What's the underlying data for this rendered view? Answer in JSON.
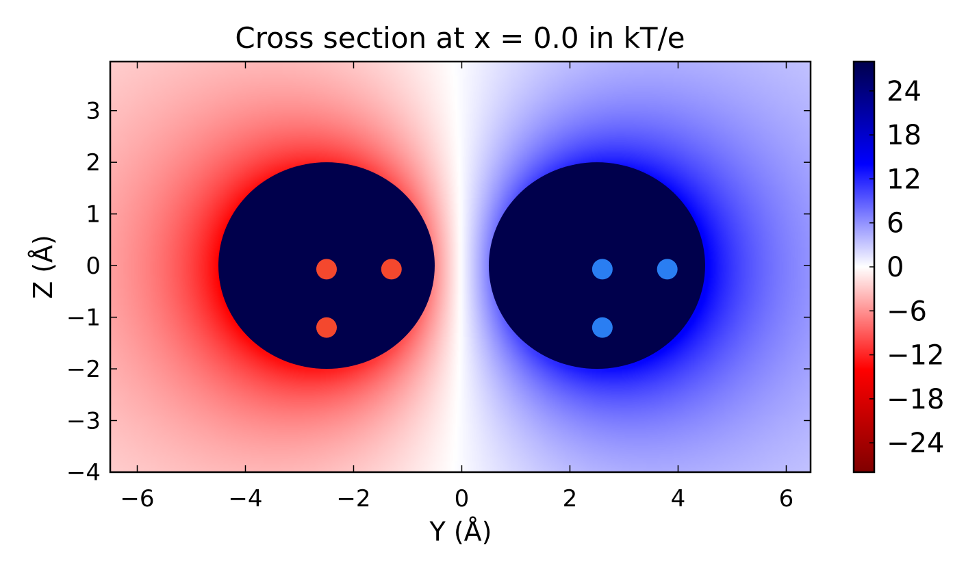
{
  "chart_data": {
    "type": "heatmap",
    "title": "Cross section at x = 0.0 in kT/e",
    "xlabel": "Y (Å)",
    "ylabel": "Z (Å)",
    "xlim": [
      -6.5,
      6.45
    ],
    "ylim": [
      -4.0,
      3.95
    ],
    "x_ticks": [
      -6,
      -4,
      -2,
      0,
      2,
      4,
      6
    ],
    "x_tick_labels": [
      "−6",
      "−4",
      "−2",
      "0",
      "2",
      "4",
      "6"
    ],
    "y_ticks": [
      3,
      2,
      1,
      0,
      -1,
      -2,
      -3,
      -4
    ],
    "y_tick_labels": [
      "3",
      "2",
      "1",
      "0",
      "−1",
      "−2",
      "−3",
      "−4"
    ],
    "colorbar": {
      "range": [
        -28,
        28
      ],
      "ticks": [
        24,
        18,
        12,
        6,
        0,
        -6,
        -12,
        -18,
        -24
      ],
      "tick_labels": [
        "24",
        "18",
        "12",
        "6",
        "0",
        "−6",
        "−12",
        "−18",
        "−24"
      ],
      "colormap": "seismic"
    },
    "field": {
      "description": "dipole potential",
      "negative_center": [
        -2.5,
        -0.05
      ],
      "positive_center": [
        2.5,
        -0.05
      ],
      "peak": 20
    },
    "masked_regions": [
      {
        "center": [
          -2.5,
          0.0
        ],
        "radius": 2.0,
        "color": "#00004c"
      },
      {
        "center": [
          2.5,
          0.0
        ],
        "radius": 2.0,
        "color": "#00004c"
      }
    ],
    "atoms": [
      {
        "y": -2.5,
        "z": -0.07,
        "color": "#f4482e"
      },
      {
        "y": -1.3,
        "z": -0.07,
        "color": "#f4482e"
      },
      {
        "y": -2.5,
        "z": -1.2,
        "color": "#f4482e"
      },
      {
        "y": 2.6,
        "z": -0.07,
        "color": "#2a7ef2"
      },
      {
        "y": 3.8,
        "z": -0.07,
        "color": "#2a7ef2"
      },
      {
        "y": 2.6,
        "z": -1.2,
        "color": "#2a7ef2"
      }
    ]
  }
}
